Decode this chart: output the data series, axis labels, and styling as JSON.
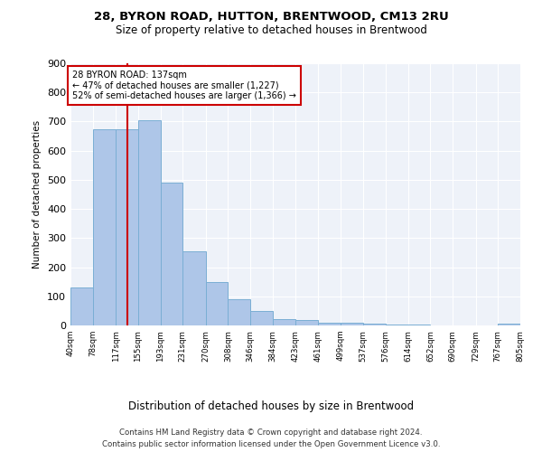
{
  "title1": "28, BYRON ROAD, HUTTON, BRENTWOOD, CM13 2RU",
  "title2": "Size of property relative to detached houses in Brentwood",
  "xlabel": "Distribution of detached houses by size in Brentwood",
  "ylabel": "Number of detached properties",
  "bar_color": "#aec6e8",
  "bar_edge_color": "#7aaed4",
  "vline_x": 137,
  "vline_color": "#cc0000",
  "annotation_title": "28 BYRON ROAD: 137sqm",
  "annotation_line1": "← 47% of detached houses are smaller (1,227)",
  "annotation_line2": "52% of semi-detached houses are larger (1,366) →",
  "bin_edges": [
    40,
    78,
    117,
    155,
    193,
    231,
    270,
    308,
    346,
    384,
    423,
    461,
    499,
    537,
    576,
    614,
    652,
    690,
    729,
    767,
    805
  ],
  "bar_heights": [
    130,
    675,
    675,
    705,
    490,
    253,
    150,
    90,
    50,
    22,
    18,
    10,
    8,
    5,
    3,
    2,
    1,
    1,
    0,
    6
  ],
  "footnote1": "Contains HM Land Registry data © Crown copyright and database right 2024.",
  "footnote2": "Contains public sector information licensed under the Open Government Licence v3.0.",
  "background_color": "#eef2f9",
  "box_color": "#cc0000",
  "ylim": [
    0,
    900
  ],
  "yticks": [
    0,
    100,
    200,
    300,
    400,
    500,
    600,
    700,
    800,
    900
  ]
}
